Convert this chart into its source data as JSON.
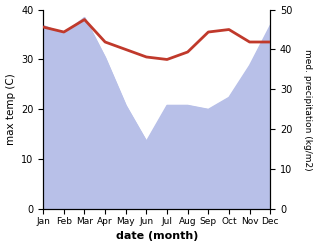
{
  "months": [
    "Jan",
    "Feb",
    "Mar",
    "Apr",
    "May",
    "Jun",
    "Jul",
    "Aug",
    "Sep",
    "Oct",
    "Nov",
    "Dec"
  ],
  "month_indices": [
    1,
    2,
    3,
    4,
    5,
    6,
    7,
    8,
    9,
    10,
    11,
    12
  ],
  "max_temp": [
    36.5,
    35.5,
    38.0,
    33.5,
    32.0,
    30.5,
    30.0,
    31.5,
    35.5,
    36.0,
    33.5,
    33.5
  ],
  "precipitation": [
    46,
    44,
    48,
    38,
    26,
    17,
    26,
    26,
    25,
    28,
    36,
    46
  ],
  "temp_color": "#c0392b",
  "precip_fill_color": "#b8c0e8",
  "ylabel_left": "max temp (C)",
  "ylabel_right": "med. precipitation (kg/m2)",
  "xlabel": "date (month)",
  "ylim_left": [
    0,
    40
  ],
  "ylim_right": [
    0,
    50
  ],
  "yticks_left": [
    0,
    10,
    20,
    30,
    40
  ],
  "yticks_right": [
    0,
    10,
    20,
    30,
    40,
    50
  ],
  "temp_linewidth": 2.0,
  "fig_width": 3.18,
  "fig_height": 2.47,
  "dpi": 100
}
